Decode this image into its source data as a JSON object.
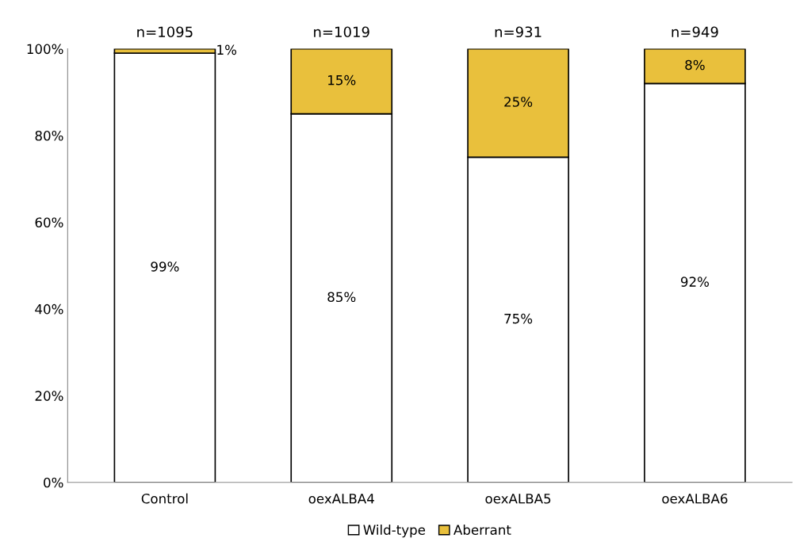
{
  "chart_data": {
    "type": "bar",
    "stacked": true,
    "categories": [
      "Control",
      "oexALBA4",
      "oexALBA5",
      "oexALBA6"
    ],
    "series": [
      {
        "name": "Wild-type",
        "color": "#ffffff",
        "values": [
          99,
          85,
          75,
          92
        ],
        "value_labels": [
          "99%",
          "85%",
          "75%",
          "92%"
        ]
      },
      {
        "name": "Aberrant",
        "color": "#e9c03c",
        "values": [
          1,
          15,
          25,
          8
        ],
        "value_labels": [
          "1%",
          "15%",
          "25%",
          "8%"
        ]
      }
    ],
    "ylim": [
      0,
      100
    ],
    "yticks": [
      {
        "value": 0,
        "label": "0%"
      },
      {
        "value": 20,
        "label": "20%"
      },
      {
        "value": 40,
        "label": "40%"
      },
      {
        "value": 60,
        "label": "60%"
      },
      {
        "value": 80,
        "label": "80%"
      },
      {
        "value": 100,
        "label": "100%"
      }
    ],
    "annotations": [
      "n=1095",
      "n=1019",
      "n=931",
      "n=949"
    ],
    "grid": false,
    "legend": "bottom"
  }
}
